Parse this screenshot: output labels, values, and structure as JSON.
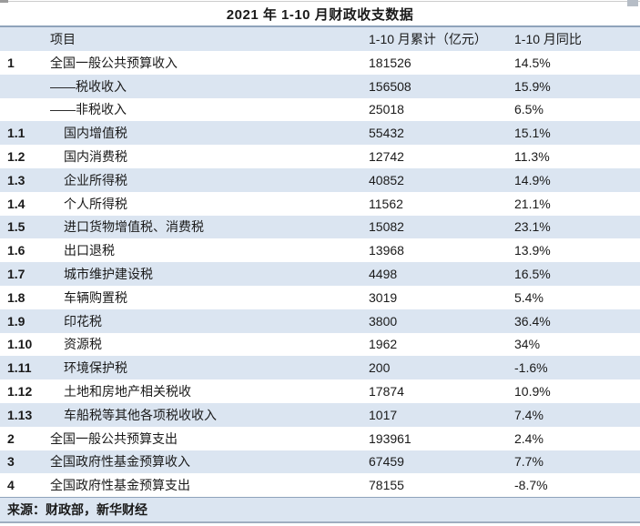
{
  "colors": {
    "band": "#dbe5f1",
    "separator": "#8fa3bb",
    "text": "#1a1a1a",
    "background": "#ffffff"
  },
  "chart_data": {
    "type": "table",
    "title": "2021 年 1-10 月财政收支数据",
    "columns": [
      "项目",
      "1-10 月累计（亿元）",
      "1-10 月同比"
    ],
    "rows": [
      {
        "code": "1",
        "label": "全国一般公共预算收入",
        "value": "181526",
        "yoy": "14.5%",
        "level": 1
      },
      {
        "code": "",
        "label": "——税收收入",
        "value": "156508",
        "yoy": "15.9%",
        "level": 1
      },
      {
        "code": "",
        "label": "——非税收入",
        "value": "25018",
        "yoy": "6.5%",
        "level": 1
      },
      {
        "code": "1.1",
        "label": "国内增值税",
        "value": "55432",
        "yoy": "15.1%",
        "level": 2
      },
      {
        "code": "1.2",
        "label": "国内消费税",
        "value": "12742",
        "yoy": "11.3%",
        "level": 2
      },
      {
        "code": "1.3",
        "label": "企业所得税",
        "value": "40852",
        "yoy": "14.9%",
        "level": 2
      },
      {
        "code": "1.4",
        "label": "个人所得税",
        "value": "11562",
        "yoy": "21.1%",
        "level": 2
      },
      {
        "code": "1.5",
        "label": "进口货物增值税、消费税",
        "value": "15082",
        "yoy": "23.1%",
        "level": 2
      },
      {
        "code": "1.6",
        "label": "出口退税",
        "value": "13968",
        "yoy": "13.9%",
        "level": 2
      },
      {
        "code": "1.7",
        "label": "城市维护建设税",
        "value": "4498",
        "yoy": "16.5%",
        "level": 2
      },
      {
        "code": "1.8",
        "label": "车辆购置税",
        "value": "3019",
        "yoy": "5.4%",
        "level": 2
      },
      {
        "code": "1.9",
        "label": "印花税",
        "value": "3800",
        "yoy": "36.4%",
        "level": 2
      },
      {
        "code": "1.10",
        "label": "资源税",
        "value": "1962",
        "yoy": "34%",
        "level": 2
      },
      {
        "code": "1.11",
        "label": "环境保护税",
        "value": "200",
        "yoy": "-1.6%",
        "level": 2
      },
      {
        "code": "1.12",
        "label": "土地和房地产相关税收",
        "value": "17874",
        "yoy": "10.9%",
        "level": 2
      },
      {
        "code": "1.13",
        "label": "车船税等其他各项税收收入",
        "value": "1017",
        "yoy": "7.4%",
        "level": 2
      },
      {
        "code": "2",
        "label": "全国一般公共预算支出",
        "value": "193961",
        "yoy": "2.4%",
        "level": 1
      },
      {
        "code": "3",
        "label": "全国政府性基金预算收入",
        "value": "67459",
        "yoy": "7.7%",
        "level": 1
      },
      {
        "code": "4",
        "label": "全国政府性基金预算支出",
        "value": "78155",
        "yoy": "-8.7%",
        "level": 1
      }
    ],
    "source": "来源：财政部，新华财经"
  }
}
